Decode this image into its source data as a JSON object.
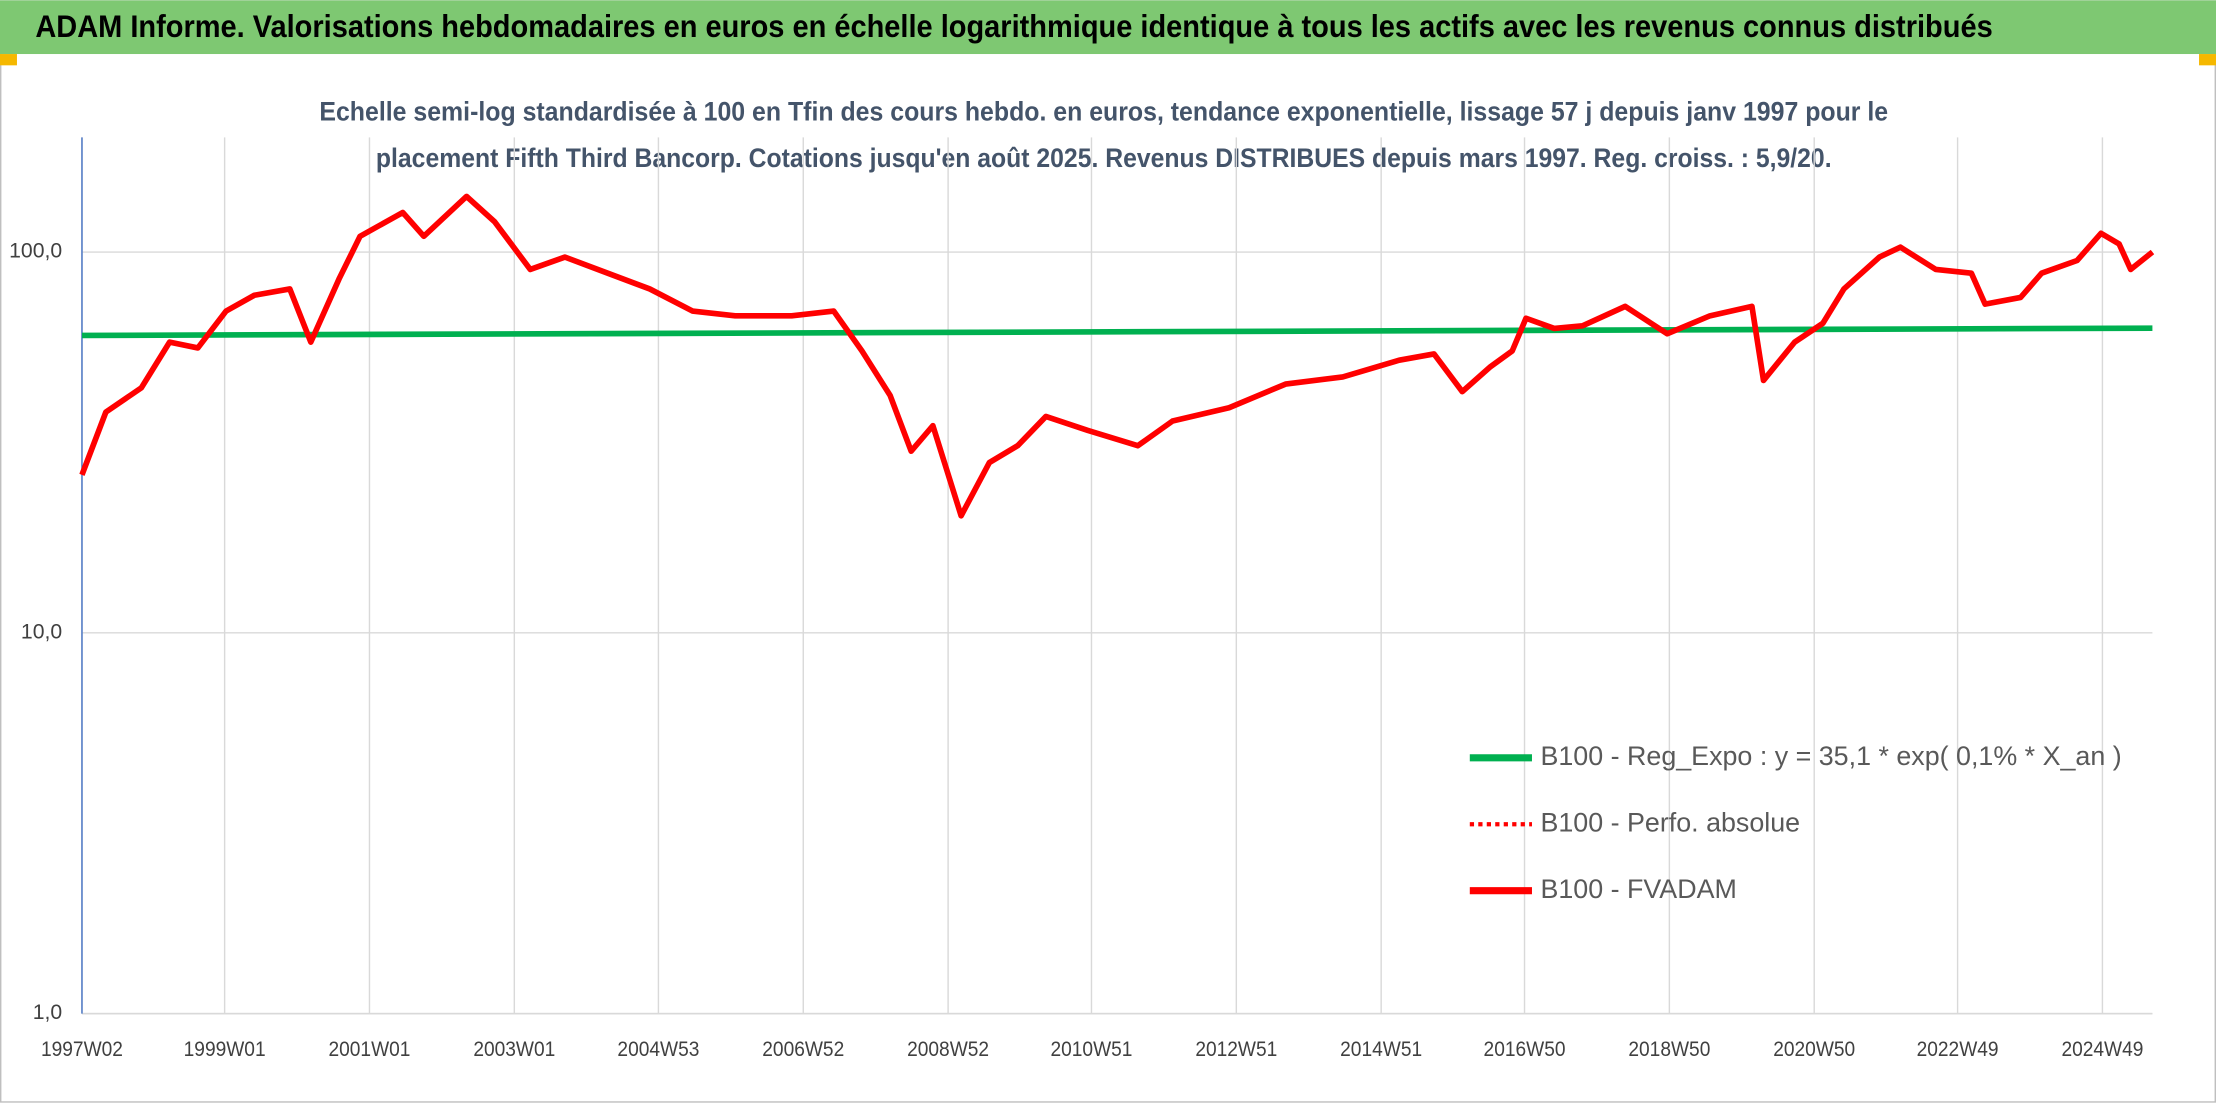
{
  "chart_data": {
    "type": "line",
    "title": "ADAM Informe. Valorisations hebdomadaires en euros en échelle logarithmique identique à tous les actifs avec les revenus connus distribués",
    "subtitle": [
      "Echelle semi-log standardisée à 100 en Tfin des cours hebdo. en euros, tendance exponentielle, lissage 57 j depuis janv 1997 pour le",
      "placement Fifth Third Bancorp. Cotations jusqu'en août 2025. Revenus DISTRIBUES depuis mars 1997. Reg. croiss. : 5,9/20."
    ],
    "log_scale": true,
    "grid": true,
    "legend": "lower right",
    "xlim": [
      1997.03,
      2025.62
    ],
    "xticks": [
      {
        "value": 1997.03,
        "label": "1997W02"
      },
      {
        "value": 1999.0,
        "label": "1999W01"
      },
      {
        "value": 2001.0,
        "label": "2001W01"
      },
      {
        "value": 2003.0,
        "label": "2003W01"
      },
      {
        "value": 2004.99,
        "label": "2004W53"
      },
      {
        "value": 2006.99,
        "label": "2006W52"
      },
      {
        "value": 2008.99,
        "label": "2008W52"
      },
      {
        "value": 2010.97,
        "label": "2010W51"
      },
      {
        "value": 2012.97,
        "label": "2012W51"
      },
      {
        "value": 2014.97,
        "label": "2014W51"
      },
      {
        "value": 2016.95,
        "label": "2016W50"
      },
      {
        "value": 2018.95,
        "label": "2018W50"
      },
      {
        "value": 2020.95,
        "label": "2020W50"
      },
      {
        "value": 2022.93,
        "label": "2022W49"
      },
      {
        "value": 2024.93,
        "label": "2024W49"
      }
    ],
    "ylim": [
      1,
      200
    ],
    "yticks": [
      {
        "value": 1,
        "label": "1,0"
      },
      {
        "value": 10,
        "label": "10,0"
      },
      {
        "value": 100,
        "label": "100,0"
      }
    ],
    "series": [
      {
        "name": "B100 - Reg_Expo : y = 35,1 * exp( 0,1% *  X_an )",
        "color": "#00b050",
        "style": "solid",
        "x": [
          1997.03,
          2025.62
        ],
        "values": [
          60.4,
          63.1
        ]
      },
      {
        "name": "B100 - Perfo. absolue",
        "color": "#ff0000",
        "style": "dotted",
        "x": [
          1997.03,
          1997.36,
          1997.85,
          1998.24,
          1998.63,
          1999.02,
          1999.41,
          1999.9,
          2000.19,
          2000.58,
          2000.87,
          2001.46,
          2001.75,
          2002.34,
          2002.73,
          2003.22,
          2003.7,
          2004.29,
          2004.87,
          2005.46,
          2006.05,
          2006.83,
          2007.41,
          2007.8,
          2008.19,
          2008.48,
          2008.78,
          2009.17,
          2009.56,
          2009.95,
          2010.34,
          2010.92,
          2011.61,
          2012.09,
          2012.87,
          2013.65,
          2014.44,
          2015.22,
          2015.7,
          2016.09,
          2016.48,
          2016.78,
          2016.97,
          2017.36,
          2017.75,
          2018.34,
          2018.92,
          2019.51,
          2020.09,
          2020.25,
          2020.68,
          2021.07,
          2021.36,
          2021.85,
          2022.14,
          2022.63,
          2023.12,
          2023.31,
          2023.8,
          2024.09,
          2024.58,
          2024.91,
          2025.16,
          2025.32,
          2025.62
        ],
        "values": [
          26,
          38,
          44,
          58,
          56,
          70,
          77,
          80,
          58,
          85,
          110,
          127,
          110,
          140,
          120,
          90,
          97,
          88,
          80,
          70,
          68,
          68,
          70,
          55,
          42,
          30,
          35,
          20.3,
          28,
          31,
          37,
          34,
          31,
          36,
          39,
          45,
          47,
          52,
          54,
          43,
          50,
          55,
          67,
          63,
          64,
          72,
          61,
          68,
          72,
          46,
          58,
          65,
          80,
          97,
          103,
          90,
          88,
          73,
          76,
          88,
          95,
          112,
          105,
          90,
          100
        ]
      },
      {
        "name": "B100 - FVADAM",
        "color": "#ff0000",
        "style": "solid",
        "x": [
          1997.03,
          1997.36,
          1997.85,
          1998.24,
          1998.63,
          1999.02,
          1999.41,
          1999.9,
          2000.19,
          2000.58,
          2000.87,
          2001.46,
          2001.75,
          2002.34,
          2002.73,
          2003.22,
          2003.7,
          2004.29,
          2004.87,
          2005.46,
          2006.05,
          2006.83,
          2007.41,
          2007.8,
          2008.19,
          2008.48,
          2008.78,
          2009.17,
          2009.56,
          2009.95,
          2010.34,
          2010.92,
          2011.61,
          2012.09,
          2012.87,
          2013.65,
          2014.44,
          2015.22,
          2015.7,
          2016.09,
          2016.48,
          2016.78,
          2016.97,
          2017.36,
          2017.75,
          2018.34,
          2018.92,
          2019.51,
          2020.09,
          2020.25,
          2020.68,
          2021.07,
          2021.36,
          2021.85,
          2022.14,
          2022.63,
          2023.12,
          2023.31,
          2023.8,
          2024.09,
          2024.58,
          2024.91,
          2025.16,
          2025.32,
          2025.62
        ],
        "values": [
          26,
          38,
          44,
          58,
          56,
          70,
          77,
          80,
          58,
          85,
          110,
          127,
          110,
          140,
          120,
          90,
          97,
          88,
          80,
          70,
          68,
          68,
          70,
          55,
          42,
          30,
          35,
          20.3,
          28,
          31,
          37,
          34,
          31,
          36,
          39,
          45,
          47,
          52,
          54,
          43,
          50,
          55,
          67,
          63,
          64,
          72,
          61,
          68,
          72,
          46,
          58,
          65,
          80,
          97,
          103,
          90,
          88,
          73,
          76,
          88,
          95,
          112,
          105,
          90,
          100
        ]
      }
    ]
  }
}
